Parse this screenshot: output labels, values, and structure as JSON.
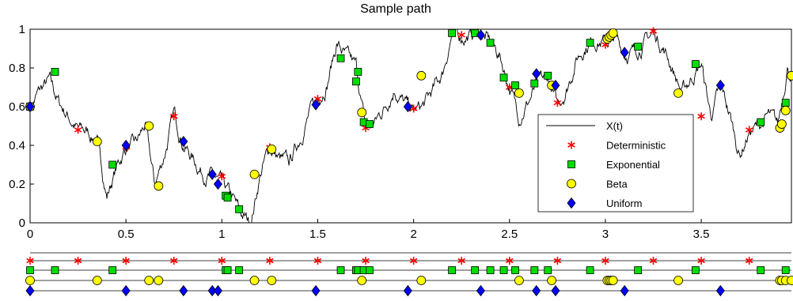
{
  "chart_data": [
    {
      "type": "line",
      "title": "Sample path",
      "xlabel": "",
      "ylabel": "",
      "xlim": [
        0,
        3.97
      ],
      "ylim": [
        0,
        1
      ],
      "x_ticks": [
        "0",
        "0.5",
        "1",
        "1.5",
        "2",
        "2.5",
        "3",
        "3.5"
      ],
      "x_tick_values": [
        0,
        0.5,
        1,
        1.5,
        2,
        2.5,
        3,
        3.5
      ],
      "y_ticks": [
        "0",
        "0.2",
        "0.4",
        "0.6",
        "0.8",
        "1"
      ],
      "y_tick_values": [
        0,
        0.2,
        0.4,
        0.6,
        0.8,
        1
      ],
      "grid": false,
      "legend_position": "bottom-right",
      "path_anchors": [
        [
          0.0,
          0.6
        ],
        [
          0.05,
          0.68
        ],
        [
          0.1,
          0.73
        ],
        [
          0.15,
          0.62
        ],
        [
          0.2,
          0.55
        ],
        [
          0.25,
          0.48
        ],
        [
          0.3,
          0.47
        ],
        [
          0.35,
          0.42
        ],
        [
          0.4,
          0.14
        ],
        [
          0.45,
          0.28
        ],
        [
          0.5,
          0.39
        ],
        [
          0.55,
          0.4
        ],
        [
          0.6,
          0.5
        ],
        [
          0.65,
          0.19
        ],
        [
          0.7,
          0.35
        ],
        [
          0.75,
          0.56
        ],
        [
          0.8,
          0.41
        ],
        [
          0.85,
          0.33
        ],
        [
          0.9,
          0.26
        ],
        [
          0.95,
          0.24
        ],
        [
          1.0,
          0.19
        ],
        [
          1.05,
          0.13
        ],
        [
          1.1,
          0.04
        ],
        [
          1.15,
          0.0
        ],
        [
          1.2,
          0.25
        ],
        [
          1.25,
          0.39
        ],
        [
          1.3,
          0.33
        ],
        [
          1.35,
          0.3
        ],
        [
          1.4,
          0.42
        ],
        [
          1.45,
          0.55
        ],
        [
          1.5,
          0.64
        ],
        [
          1.55,
          0.73
        ],
        [
          1.6,
          0.93
        ],
        [
          1.65,
          0.85
        ],
        [
          1.7,
          0.8
        ],
        [
          1.75,
          0.48
        ],
        [
          1.8,
          0.52
        ],
        [
          1.85,
          0.6
        ],
        [
          1.9,
          0.7
        ],
        [
          1.95,
          0.62
        ],
        [
          2.0,
          0.57
        ],
        [
          2.05,
          0.6
        ],
        [
          2.1,
          0.68
        ],
        [
          2.15,
          0.77
        ],
        [
          2.2,
          0.98
        ],
        [
          2.25,
          0.96
        ],
        [
          2.3,
          0.97
        ],
        [
          2.35,
          0.98
        ],
        [
          2.4,
          0.93
        ],
        [
          2.45,
          0.86
        ],
        [
          2.5,
          0.7
        ],
        [
          2.55,
          0.55
        ],
        [
          2.6,
          0.63
        ],
        [
          2.65,
          0.72
        ],
        [
          2.7,
          0.74
        ],
        [
          2.75,
          0.6
        ],
        [
          2.8,
          0.7
        ],
        [
          2.85,
          0.85
        ],
        [
          2.9,
          0.92
        ],
        [
          2.95,
          0.95
        ],
        [
          3.0,
          0.93
        ],
        [
          3.05,
          0.95
        ],
        [
          3.1,
          0.88
        ],
        [
          3.15,
          0.88
        ],
        [
          3.2,
          0.93
        ],
        [
          3.25,
          0.98
        ],
        [
          3.3,
          0.91
        ],
        [
          3.35,
          0.8
        ],
        [
          3.4,
          0.67
        ],
        [
          3.45,
          0.75
        ],
        [
          3.5,
          0.82
        ],
        [
          3.55,
          0.55
        ],
        [
          3.6,
          0.7
        ],
        [
          3.65,
          0.55
        ],
        [
          3.7,
          0.35
        ],
        [
          3.75,
          0.47
        ],
        [
          3.8,
          0.5
        ],
        [
          3.85,
          0.55
        ],
        [
          3.9,
          0.5
        ],
        [
          3.95,
          0.82
        ],
        [
          3.97,
          0.76
        ]
      ],
      "series": [
        {
          "name": "X(t)",
          "style": "line",
          "color": "#000000"
        },
        {
          "name": "Deterministic",
          "style": "asterisk",
          "color": "#ff0000",
          "x": [
            0,
            0.25,
            0.5,
            0.75,
            1.0,
            1.25,
            1.5,
            1.75,
            2.0,
            2.25,
            2.5,
            2.75,
            3.0,
            3.25,
            3.5,
            3.75
          ],
          "y": [
            0.6,
            0.48,
            0.39,
            0.55,
            0.24,
            0.39,
            0.64,
            0.49,
            0.59,
            0.97,
            0.7,
            0.62,
            0.92,
            0.99,
            0.55,
            0.48
          ]
        },
        {
          "name": "Exponential",
          "style": "square",
          "color": "#00dd00",
          "x": [
            0.0,
            0.13,
            0.43,
            1.02,
            1.03,
            1.09,
            1.62,
            1.7,
            1.71,
            1.74,
            1.77,
            2.2,
            2.32,
            2.4,
            2.47,
            2.53,
            2.63,
            2.7,
            2.92,
            3.17,
            3.47,
            3.81,
            3.94
          ],
          "y": [
            0.6,
            0.78,
            0.3,
            0.14,
            0.13,
            0.07,
            0.85,
            0.73,
            0.78,
            0.52,
            0.51,
            0.98,
            0.98,
            0.93,
            0.75,
            0.71,
            0.72,
            0.76,
            0.93,
            0.91,
            0.82,
            0.52,
            0.62
          ]
        },
        {
          "name": "Beta",
          "style": "circle",
          "color": "#ffff00",
          "x": [
            0.0,
            0.35,
            0.62,
            0.67,
            1.17,
            1.26,
            1.73,
            2.04,
            2.55,
            2.72,
            3.01,
            3.02,
            3.03,
            3.04,
            3.38,
            3.91,
            3.92,
            3.94,
            3.97
          ],
          "y": [
            0.6,
            0.42,
            0.5,
            0.19,
            0.25,
            0.38,
            0.57,
            0.76,
            0.67,
            0.71,
            0.95,
            0.96,
            0.97,
            0.98,
            0.67,
            0.49,
            0.51,
            0.58,
            0.76
          ]
        },
        {
          "name": "Uniform",
          "style": "diamond",
          "color": "#0000ff",
          "x": [
            0.0,
            0.5,
            0.8,
            0.95,
            0.98,
            1.49,
            1.97,
            2.35,
            2.64,
            2.74,
            3.1,
            3.6
          ],
          "y": [
            0.6,
            0.4,
            0.42,
            0.25,
            0.2,
            0.61,
            0.6,
            0.97,
            0.77,
            0.71,
            0.88,
            0.71
          ]
        }
      ]
    },
    {
      "type": "scatter",
      "title": "",
      "description_rows": [
        "Deterministic",
        "Exponential",
        "Beta",
        "Uniform"
      ],
      "xlim": [
        0,
        3.97
      ],
      "note_series_reuse": "rows reuse the x values of the matching series in the first chart"
    }
  ]
}
